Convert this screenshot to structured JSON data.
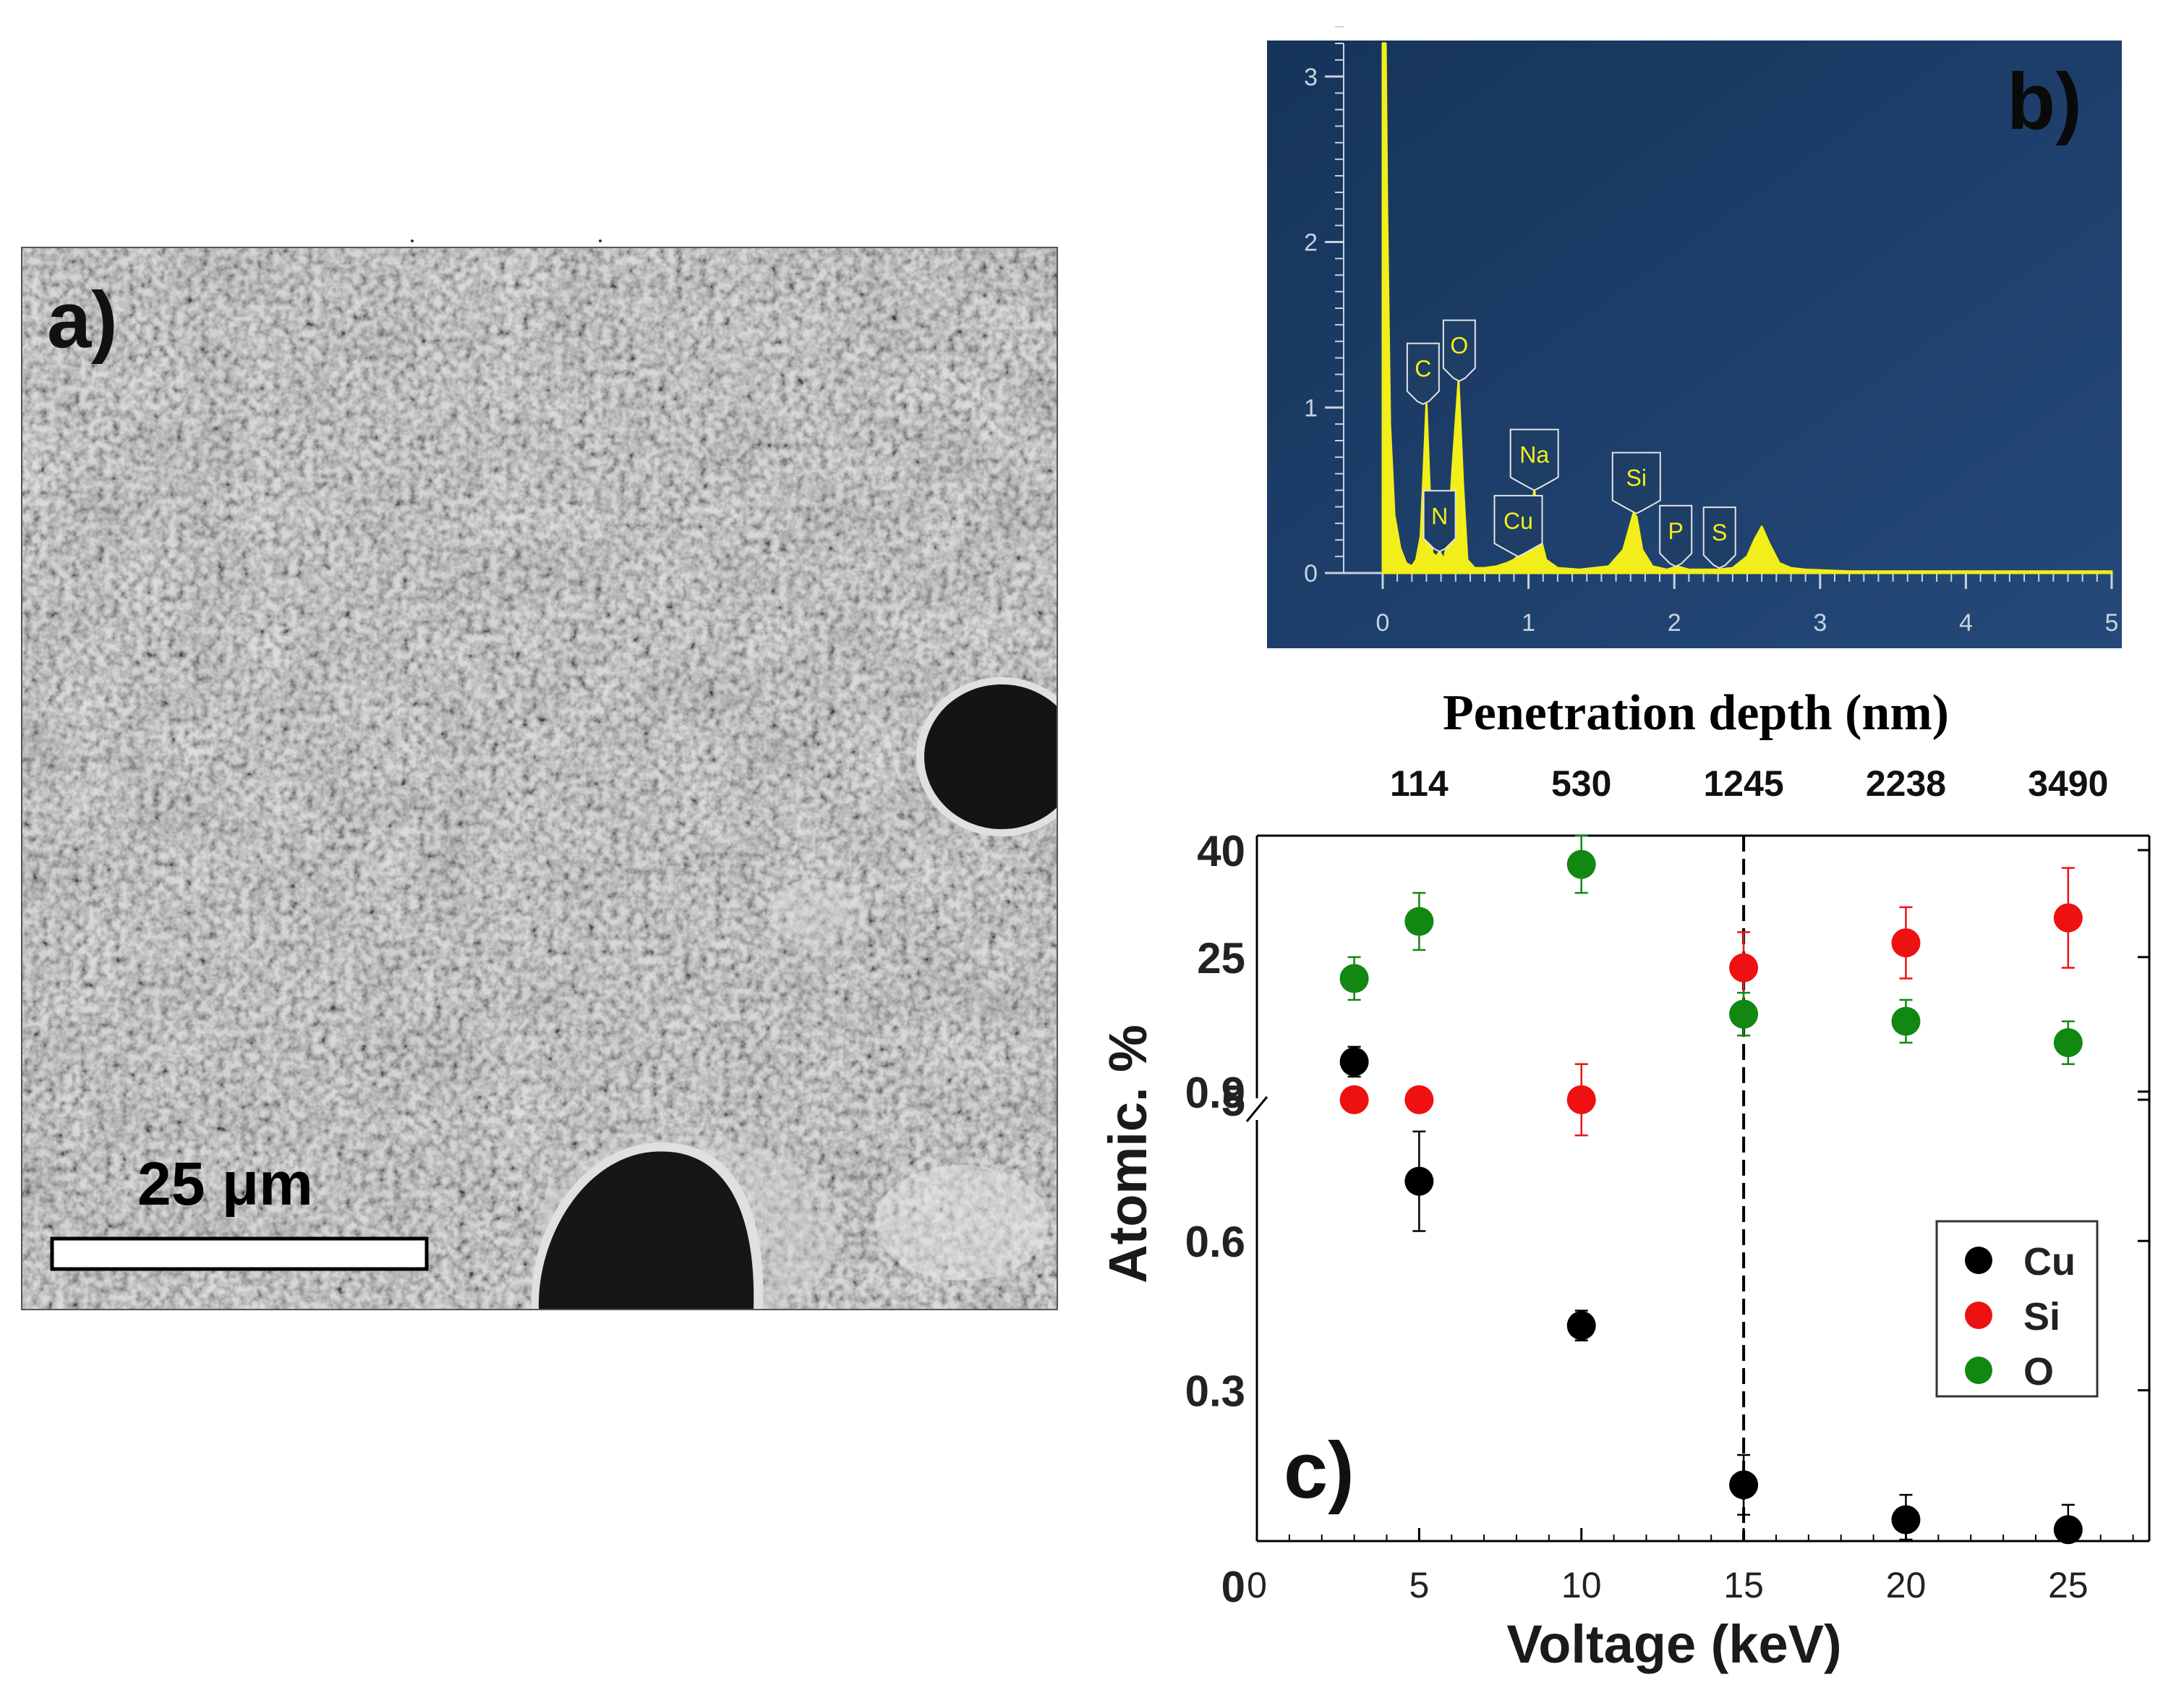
{
  "panel_a": {
    "label": "a)",
    "scale_bar_text": "25 μm"
  },
  "panel_b": {
    "label": "b)",
    "colors": {
      "background": "#1e3e66",
      "spectrum": "#f2ee1a",
      "axis": "#c8d2e0"
    },
    "chart_data": {
      "type": "line",
      "title": "",
      "xlabel": "",
      "ylabel": "",
      "xlim": [
        0,
        5
      ],
      "ylim": [
        0,
        3.2
      ],
      "x_ticks": [
        "0",
        "1",
        "2",
        "3",
        "4",
        "5"
      ],
      "y_ticks": [
        "0",
        "1",
        "2",
        "3"
      ],
      "x_tick_values": [
        0,
        1,
        2,
        3,
        4,
        5
      ],
      "y_tick_values": [
        0,
        1,
        2,
        3
      ],
      "spectrum_x": [
        0,
        0.02,
        0.03,
        0.05,
        0.08,
        0.12,
        0.16,
        0.2,
        0.23,
        0.26,
        0.28,
        0.3,
        0.32,
        0.34,
        0.37,
        0.39,
        0.42,
        0.45,
        0.48,
        0.52,
        0.55,
        0.58,
        0.63,
        0.7,
        0.78,
        0.85,
        0.9,
        0.95,
        1.0,
        1.04,
        1.08,
        1.12,
        1.2,
        1.35,
        1.55,
        1.65,
        1.72,
        1.74,
        1.78,
        1.85,
        1.95,
        2.02,
        2.1,
        2.2,
        2.3,
        2.4,
        2.5,
        2.55,
        2.6,
        2.65,
        2.72,
        2.8,
        2.9,
        3.2,
        4.0,
        5.0
      ],
      "spectrum_y": [
        3.2,
        3.2,
        2.2,
        0.9,
        0.35,
        0.15,
        0.06,
        0.04,
        0.08,
        0.22,
        0.6,
        1.02,
        0.55,
        0.12,
        0.1,
        0.13,
        0.08,
        0.22,
        0.65,
        1.16,
        0.55,
        0.08,
        0.03,
        0.03,
        0.04,
        0.06,
        0.08,
        0.12,
        0.22,
        0.5,
        0.22,
        0.08,
        0.03,
        0.02,
        0.04,
        0.14,
        0.36,
        0.34,
        0.14,
        0.04,
        0.02,
        0.04,
        0.02,
        0.02,
        0.02,
        0.03,
        0.1,
        0.2,
        0.28,
        0.18,
        0.06,
        0.03,
        0.02,
        0.01,
        0.01,
        0.01
      ],
      "peaks": [
        {
          "element": "C",
          "energy": 0.277,
          "height": 1.02
        },
        {
          "element": "N",
          "energy": 0.39,
          "height": 0.13
        },
        {
          "element": "O",
          "energy": 0.525,
          "height": 1.16
        },
        {
          "element": "Cu",
          "energy": 0.93,
          "height": 0.1
        },
        {
          "element": "Na",
          "energy": 1.04,
          "height": 0.5
        },
        {
          "element": "Si",
          "energy": 1.74,
          "height": 0.36
        },
        {
          "element": "P",
          "energy": 2.01,
          "height": 0.04
        },
        {
          "element": "S",
          "energy": 2.31,
          "height": 0.03
        }
      ]
    }
  },
  "panel_c": {
    "label": "c)",
    "chart_data": {
      "type": "scatter",
      "title": "",
      "xlabel": "Voltage (keV)",
      "ylabel": "Atomic. %",
      "top_xlabel": "Penetration depth (nm)",
      "xlim": [
        0,
        27.5
      ],
      "x_ticks": [
        "0",
        "5",
        "10",
        "15",
        "20",
        "25"
      ],
      "x_tick_values": [
        0,
        5,
        10,
        15,
        20,
        25
      ],
      "top_ticks": [
        {
          "label": "114",
          "x": 5
        },
        {
          "label": "530",
          "x": 10
        },
        {
          "label": "1245",
          "x": 15
        },
        {
          "label": "2238",
          "x": 20
        },
        {
          "label": "3490",
          "x": 25
        }
      ],
      "y_axis_note": "broken axis: lower segment 0–1 (linear), upper segment 5–40",
      "y_ticks_lower": [
        "0",
        "0.3",
        "0.6",
        "0.9"
      ],
      "y_tick_values_lower": [
        0,
        0.3,
        0.6,
        0.9
      ],
      "y_ticks_upper": [
        "5",
        "25",
        "40"
      ],
      "y_tick_values_upper": [
        5,
        25,
        40
      ],
      "dashed_line_x": 15,
      "legend_position": "right",
      "series": [
        {
          "name": "Cu",
          "color": "#000000",
          "axis_segment": "lower",
          "x": [
            3,
            5,
            10,
            15,
            20,
            25
          ],
          "y": [
            0.96,
            0.72,
            0.43,
            0.11,
            0.04,
            0.02
          ],
          "yerr": [
            0.03,
            0.1,
            0.03,
            0.06,
            0.05,
            0.05
          ]
        },
        {
          "name": "Si",
          "color": "#ee1111",
          "axis_segment": "upper",
          "x": [
            3,
            5,
            10,
            15,
            20,
            25
          ],
          "y": [
            5,
            5,
            5,
            23.5,
            27,
            30.5
          ],
          "yerr": [
            1.5,
            1.5,
            5,
            5,
            5,
            7
          ]
        },
        {
          "name": "O",
          "color": "#118811",
          "axis_segment": "upper",
          "x": [
            3,
            5,
            10,
            15,
            20,
            25
          ],
          "y": [
            22,
            30,
            38,
            17,
            16,
            13
          ],
          "yerr": [
            3,
            4,
            4,
            3,
            3,
            3
          ]
        }
      ]
    }
  }
}
